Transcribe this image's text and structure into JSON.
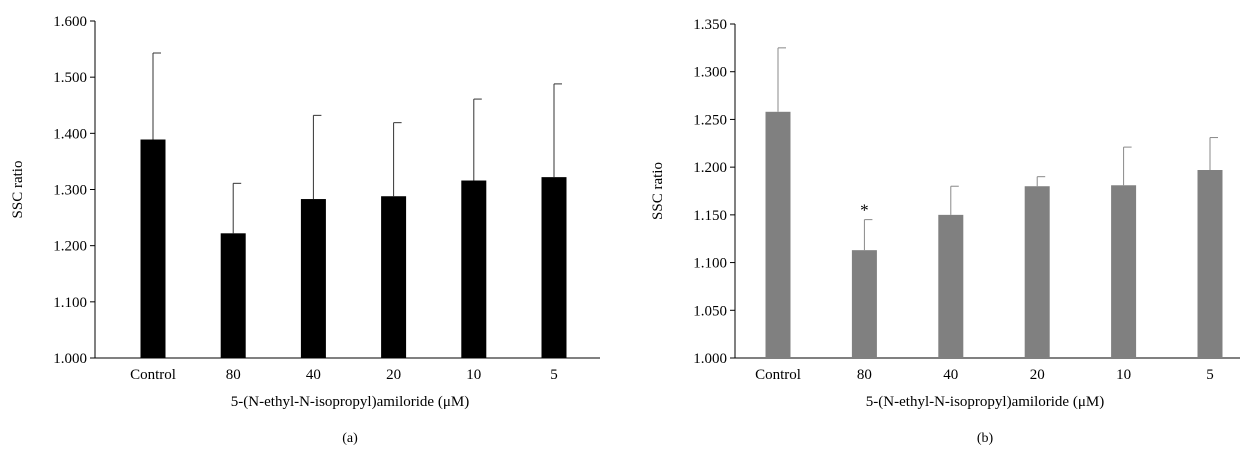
{
  "chart_data": [
    {
      "panel": "(a)",
      "type": "bar",
      "categories": [
        "Control",
        "80",
        "40",
        "20",
        "10",
        "5"
      ],
      "values": [
        1.389,
        1.222,
        1.283,
        1.288,
        1.316,
        1.322
      ],
      "error_upper": [
        1.543,
        1.311,
        1.432,
        1.419,
        1.461,
        1.488
      ],
      "annotations": [
        "",
        "",
        "",
        "",
        "",
        ""
      ],
      "ylabel": "SSC ratio",
      "xlabel": "5-(N-ethyl-N-isopropyl)amiloride (μM)",
      "ylim": [
        1.0,
        1.6
      ],
      "yticks": [
        1.0,
        1.1,
        1.2,
        1.3,
        1.4,
        1.5,
        1.6
      ],
      "ytick_labels": [
        "1.000",
        "1.100",
        "1.200",
        "1.300",
        "1.400",
        "1.500",
        "1.600"
      ],
      "bar_color": "#000000",
      "grid": false
    },
    {
      "panel": "(b)",
      "type": "bar",
      "categories": [
        "Control",
        "80",
        "40",
        "20",
        "10",
        "5"
      ],
      "values": [
        1.258,
        1.113,
        1.15,
        1.18,
        1.181,
        1.197
      ],
      "error_upper": [
        1.325,
        1.145,
        1.18,
        1.19,
        1.221,
        1.231
      ],
      "annotations": [
        "",
        "*",
        "",
        "",
        "",
        ""
      ],
      "ylabel": "SSC ratio",
      "xlabel": "5-(N-ethyl-N-isopropyl)amiloride (μM)",
      "ylim": [
        1.0,
        1.35
      ],
      "yticks": [
        1.0,
        1.05,
        1.1,
        1.15,
        1.2,
        1.25,
        1.3,
        1.35
      ],
      "ytick_labels": [
        "1.000",
        "1.050",
        "1.100",
        "1.150",
        "1.200",
        "1.250",
        "1.300",
        "1.350"
      ],
      "bar_color": "#808080",
      "grid": false
    }
  ]
}
